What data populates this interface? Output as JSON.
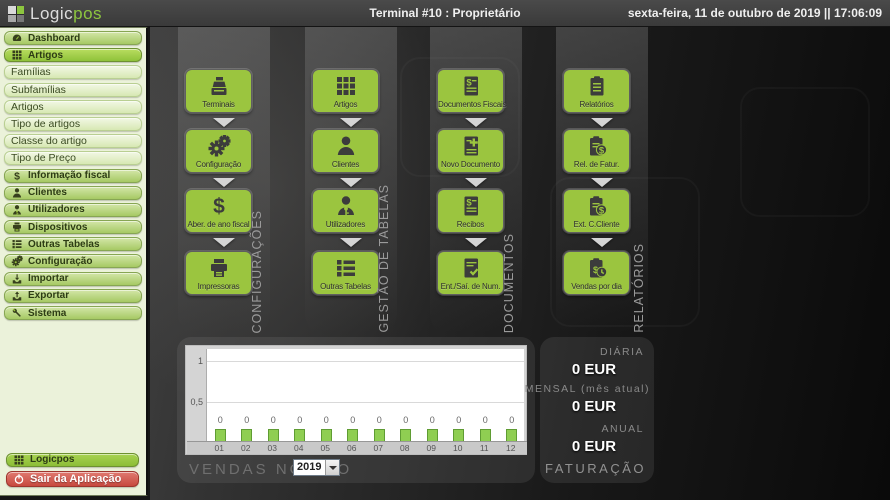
{
  "topbar": {
    "logo": {
      "text_primary": "Logic",
      "text_accent": "pos"
    },
    "terminal": "Terminal #10 : Proprietário",
    "datetime": "sexta-feira, 11 de outubro de 2019 || 17:06:09"
  },
  "colors": {
    "accent_green": "#8dc63f",
    "button_green": "#9bc53f",
    "exit_red": "#c7493f",
    "sidebar_bg": "#ebf2da",
    "bar_fill": "#8fce52",
    "bar_border": "#5f9c33"
  },
  "sidebar": {
    "items": [
      {
        "label": "Dashboard",
        "icon": "dashboard-icon",
        "type": "main"
      },
      {
        "label": "Artigos",
        "icon": "grid-icon",
        "type": "sel"
      },
      {
        "label": "Famílias",
        "type": "sub"
      },
      {
        "label": "Subfamílias",
        "type": "sub"
      },
      {
        "label": "Artigos",
        "type": "sub"
      },
      {
        "label": "Tipo de artigos",
        "type": "sub"
      },
      {
        "label": "Classe do artigo",
        "type": "sub"
      },
      {
        "label": "Tipo de Preço",
        "type": "sub"
      },
      {
        "label": "Informação fiscal",
        "icon": "dollar-icon",
        "type": "main"
      },
      {
        "label": "Clientes",
        "icon": "person-icon",
        "type": "main"
      },
      {
        "label": "Utilizadores",
        "icon": "user-key-icon",
        "type": "main"
      },
      {
        "label": "Dispositivos",
        "icon": "printer-icon",
        "type": "main"
      },
      {
        "label": "Outras Tabelas",
        "icon": "list-icon",
        "type": "main"
      },
      {
        "label": "Configuração",
        "icon": "gears-icon",
        "type": "main"
      },
      {
        "label": "Importar",
        "icon": "import-icon",
        "type": "main"
      },
      {
        "label": "Exportar",
        "icon": "export-icon",
        "type": "main"
      },
      {
        "label": "Sistema",
        "icon": "wrench-icon",
        "type": "main"
      }
    ],
    "footer": [
      {
        "label": "Logicpos",
        "icon": "grid-icon",
        "style": "brand"
      },
      {
        "label": "Sair da Aplicação",
        "icon": "power-icon",
        "style": "exit"
      }
    ]
  },
  "menu_columns": [
    {
      "title": "CONFIGURAÇÕES",
      "buttons": [
        {
          "label": "Terminais",
          "icon": "cash-register-icon"
        },
        {
          "label": "Configuração",
          "icon": "gears-icon"
        },
        {
          "label": "Aber. de ano fiscal",
          "icon": "dollar-icon"
        },
        {
          "label": "Impressoras",
          "icon": "printer-icon"
        }
      ]
    },
    {
      "title": "GESTÃO DE TABELAS",
      "buttons": [
        {
          "label": "Artigos",
          "icon": "grid-icon"
        },
        {
          "label": "Clientes",
          "icon": "person-icon"
        },
        {
          "label": "Utilizadores",
          "icon": "user-key-icon"
        },
        {
          "label": "Outras Tabelas",
          "icon": "list-icon"
        }
      ]
    },
    {
      "title": "DOCUMENTOS",
      "buttons": [
        {
          "label": "Documentos Fiscais",
          "icon": "doc-dollar-icon"
        },
        {
          "label": "Novo Documento",
          "icon": "doc-plus-icon"
        },
        {
          "label": "Recibos",
          "icon": "doc-dollar-icon"
        },
        {
          "label": "Ent./Saí. de Num.",
          "icon": "doc-check-icon"
        }
      ]
    },
    {
      "title": "RELATÓRIOS",
      "buttons": [
        {
          "label": "Relatórios",
          "icon": "clipboard-icon"
        },
        {
          "label": "Rel. de Fatur.",
          "icon": "clipboard-dollar-icon"
        },
        {
          "label": "Ext. C.Cliente",
          "icon": "clipboard-dollar-icon"
        },
        {
          "label": "Vendas por dia",
          "icon": "clipboard-clock-icon"
        }
      ]
    }
  ],
  "chart_data": {
    "type": "bar",
    "title": "VENDAS NO ANO",
    "year_selector": "2019",
    "categories": [
      "01",
      "02",
      "03",
      "04",
      "05",
      "06",
      "07",
      "08",
      "09",
      "10",
      "11",
      "12"
    ],
    "values": [
      0,
      0,
      0,
      0,
      0,
      0,
      0,
      0,
      0,
      0,
      0,
      0
    ],
    "bar_labels": [
      "0",
      "0",
      "0",
      "0",
      "0",
      "0",
      "0",
      "0",
      "0",
      "0",
      "0",
      "0"
    ],
    "yticks": [
      {
        "label": "1",
        "value": 1
      },
      {
        "label": "0,5",
        "value": 0.5
      }
    ],
    "ylim": [
      0,
      1.15
    ],
    "grid": true,
    "legend": "none"
  },
  "totals": {
    "daily_label": "DIÁRIA",
    "daily_value": "0 EUR",
    "monthly_label": "MENSAL (mês atual)",
    "monthly_value": "0 EUR",
    "annual_label": "ANUAL",
    "annual_value": "0 EUR",
    "panel_title": "FATURAÇÃO"
  }
}
